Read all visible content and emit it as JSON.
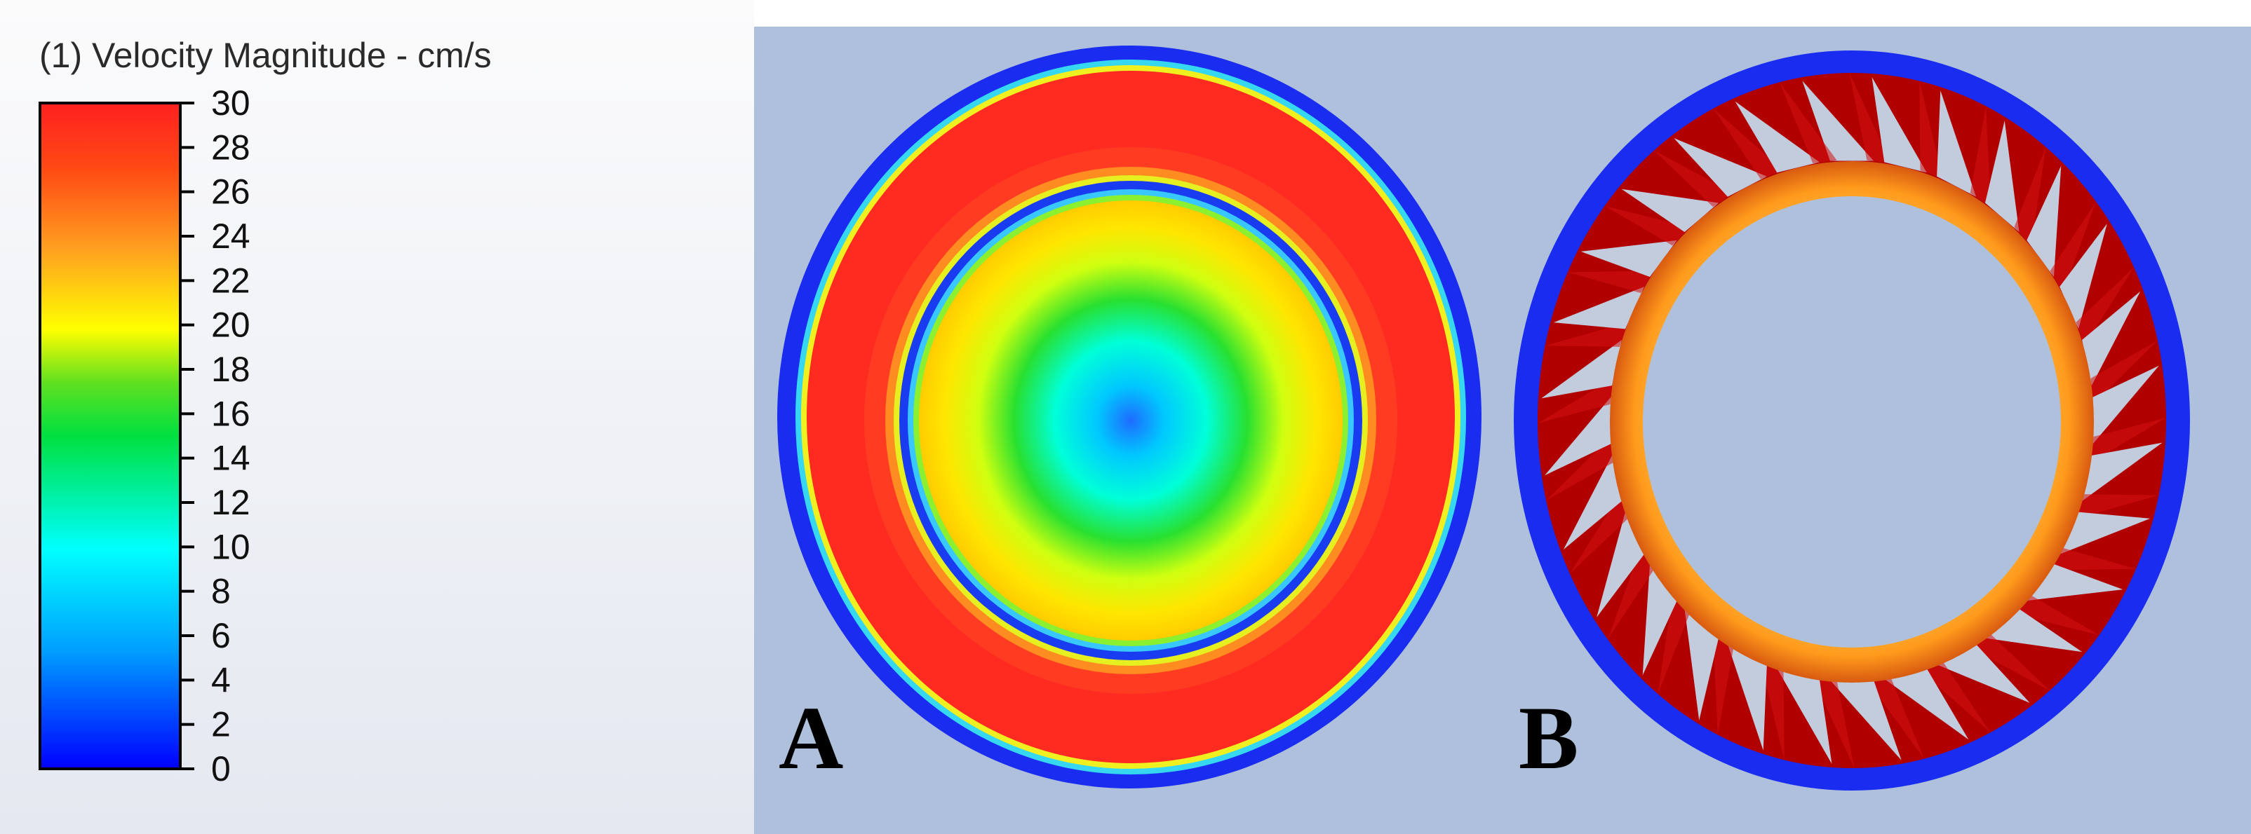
{
  "legend": {
    "title": "(1) Velocity Magnitude - cm/s",
    "min": 0,
    "max": 30,
    "ticks": [
      "30",
      "28",
      "26",
      "24",
      "22",
      "20",
      "18",
      "16",
      "14",
      "12",
      "10",
      "8",
      "6",
      "4",
      "2",
      "0"
    ],
    "colormap": [
      "#0000ff",
      "#00a0ff",
      "#00ffff",
      "#00ff40",
      "#20c020",
      "#ffff00",
      "#ffa020",
      "#ff6010",
      "#ff2020"
    ]
  },
  "panels": [
    {
      "label": "A"
    },
    {
      "label": "B"
    }
  ],
  "colors": {
    "background_panel": "#aec0dc",
    "outer_wall": "#1a2cf0",
    "fast_flow": "#ff2020",
    "blade_dark": "#b00000",
    "ring_orange": "#ffa524"
  }
}
